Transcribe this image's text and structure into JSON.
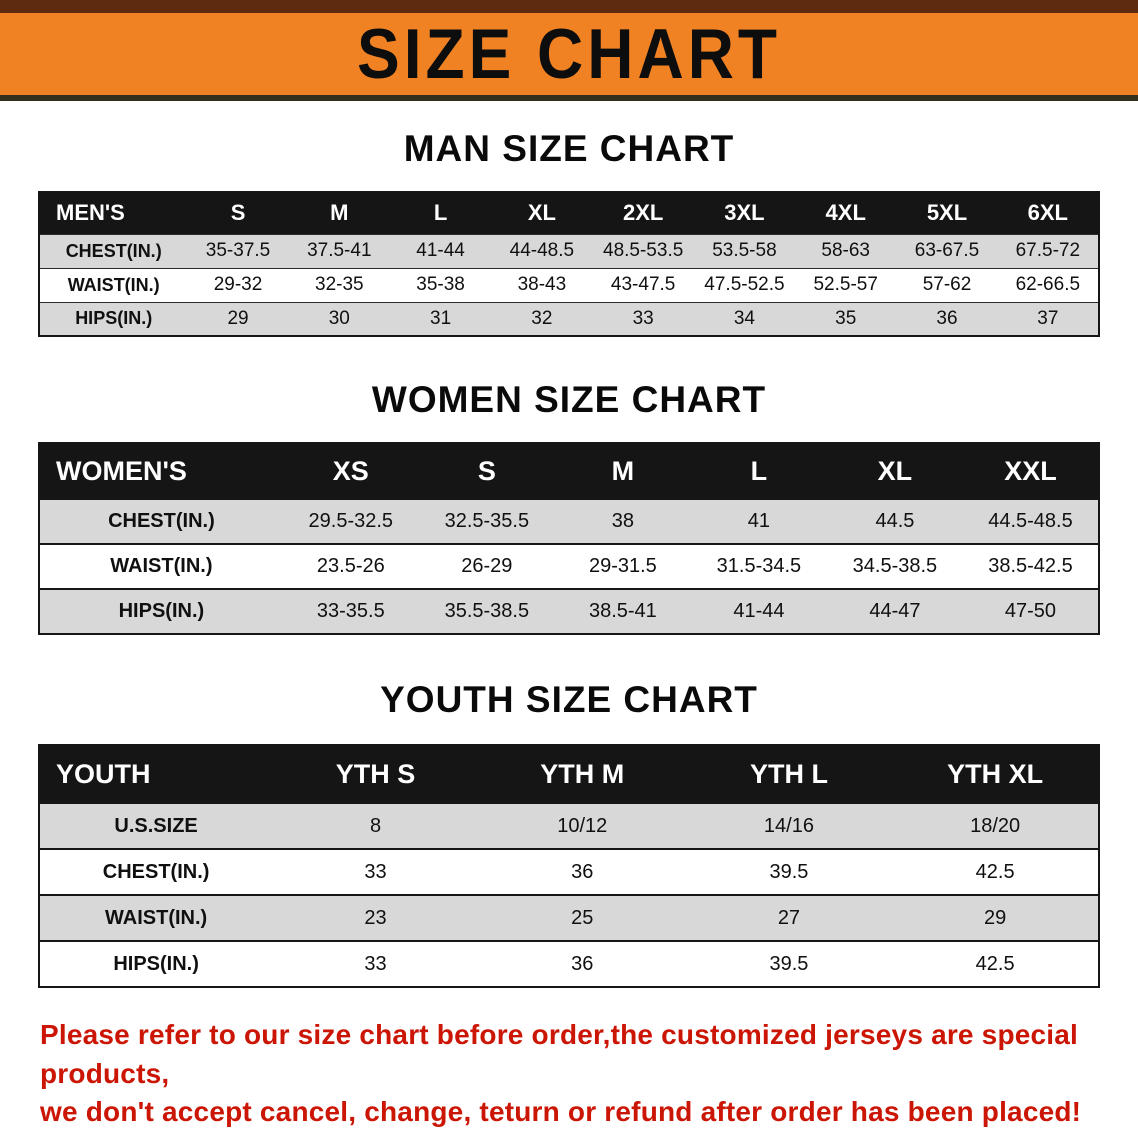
{
  "banner": {
    "title": "SIZE CHART"
  },
  "sections": [
    {
      "id": "men",
      "title": "MAN SIZE CHART",
      "header": [
        "MEN'S",
        "S",
        "M",
        "L",
        "XL",
        "2XL",
        "3XL",
        "4XL",
        "5XL",
        "6XL"
      ],
      "rows": [
        {
          "label": "CHEST(IN.)",
          "values": [
            "35-37.5",
            "37.5-41",
            "41-44",
            "44-48.5",
            "48.5-53.5",
            "53.5-58",
            "58-63",
            "63-67.5",
            "67.5-72"
          ]
        },
        {
          "label": "WAIST(IN.)",
          "values": [
            "29-32",
            "32-35",
            "35-38",
            "38-43",
            "43-47.5",
            "47.5-52.5",
            "52.5-57",
            "57-62",
            "62-66.5"
          ]
        },
        {
          "label": "HIPS(IN.)",
          "values": [
            "29",
            "30",
            "31",
            "32",
            "33",
            "34",
            "35",
            "36",
            "37"
          ]
        }
      ]
    },
    {
      "id": "women",
      "title": "WOMEN SIZE CHART",
      "header": [
        "WOMEN'S",
        "XS",
        "S",
        "M",
        "L",
        "XL",
        "XXL"
      ],
      "rows": [
        {
          "label": "CHEST(IN.)",
          "values": [
            "29.5-32.5",
            "32.5-35.5",
            "38",
            "41",
            "44.5",
            "44.5-48.5"
          ]
        },
        {
          "label": "WAIST(IN.)",
          "values": [
            "23.5-26",
            "26-29",
            "29-31.5",
            "31.5-34.5",
            "34.5-38.5",
            "38.5-42.5"
          ]
        },
        {
          "label": "HIPS(IN.)",
          "values": [
            "33-35.5",
            "35.5-38.5",
            "38.5-41",
            "41-44",
            "44-47",
            "47-50"
          ]
        }
      ]
    },
    {
      "id": "youth",
      "title": "YOUTH SIZE CHART",
      "header": [
        "YOUTH",
        "YTH S",
        "YTH M",
        "YTH L",
        "YTH XL"
      ],
      "rows": [
        {
          "label": "U.S.SIZE",
          "values": [
            "8",
            "10/12",
            "14/16",
            "18/20"
          ]
        },
        {
          "label": "CHEST(IN.)",
          "values": [
            "33",
            "36",
            "39.5",
            "42.5"
          ]
        },
        {
          "label": "WAIST(IN.)",
          "values": [
            "23",
            "25",
            "27",
            "29"
          ]
        },
        {
          "label": "HIPS(IN.)",
          "values": [
            "33",
            "36",
            "39.5",
            "42.5"
          ]
        }
      ]
    }
  ],
  "disclaimer": {
    "line1": "Please refer to our size chart before order,the customized jerseys are special products,",
    "line2": "we don't accept cancel, change, teturn or refund after order has been placed!"
  },
  "colors": {
    "banner_orange": "#f08224",
    "banner_top_strip": "#5e2a10",
    "table_header_black": "#151515",
    "row_shade_gray": "#d8d8d8",
    "disclaimer_red": "#cb1505"
  }
}
